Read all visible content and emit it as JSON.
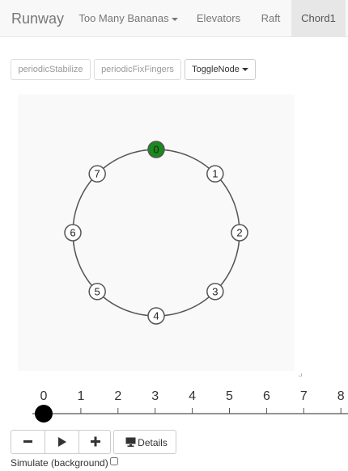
{
  "navbar": {
    "brand": "Runway",
    "items": [
      {
        "label": "Too Many Bananas",
        "dropdown": true,
        "active": false
      },
      {
        "label": "Elevators",
        "dropdown": false,
        "active": false
      },
      {
        "label": "Raft",
        "dropdown": false,
        "active": false
      },
      {
        "label": "Chord1",
        "dropdown": false,
        "active": true
      }
    ]
  },
  "toolbar": {
    "stabilize_label": "periodicStabilize",
    "fix_fingers_label": "periodicFixFingers",
    "toggle_node_label": "ToggleNode"
  },
  "ring": {
    "nodes": [
      "0",
      "1",
      "2",
      "3",
      "4",
      "5",
      "6",
      "7"
    ],
    "active_node": "0",
    "active_color": "#1a8a1a"
  },
  "timeline": {
    "ticks": [
      "0",
      "1",
      "2",
      "3",
      "4",
      "5",
      "6",
      "7",
      "8"
    ],
    "position": 0
  },
  "controls": {
    "details_label": "Details",
    "simulate_label": "Simulate (background)",
    "simulate_checked": false
  }
}
